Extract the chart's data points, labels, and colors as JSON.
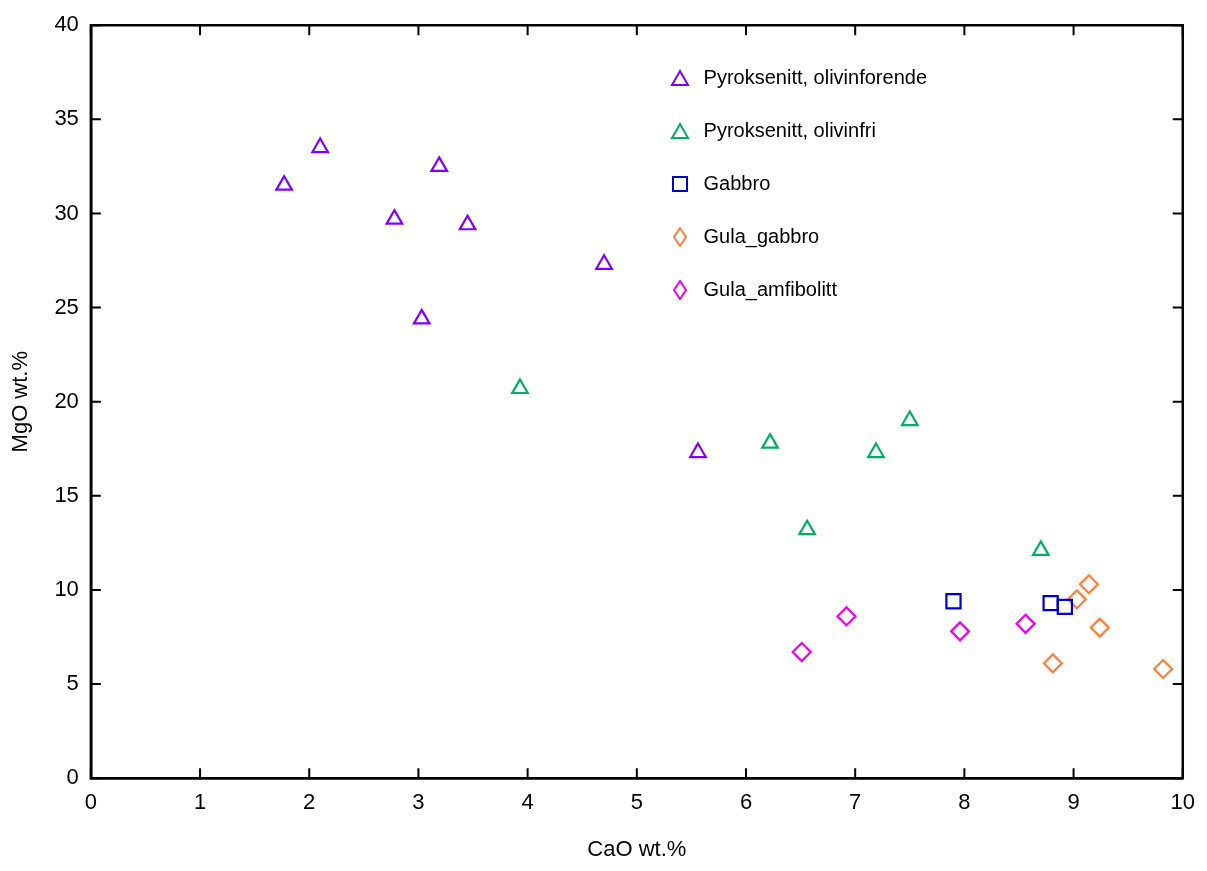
{
  "chart_data": {
    "type": "scatter",
    "xlabel": "CaO wt.%",
    "ylabel": "MgO wt.%",
    "xlim": [
      0,
      10
    ],
    "ylim": [
      0,
      40
    ],
    "xticks": [
      0,
      1,
      2,
      3,
      4,
      5,
      6,
      7,
      8,
      9,
      10
    ],
    "yticks": [
      0,
      5,
      10,
      15,
      20,
      25,
      30,
      35,
      40
    ],
    "grid": false,
    "legend": "top right",
    "series": [
      {
        "name": "Pyroksenitt, olivinforende",
        "color": "#8000ff",
        "marker": "triangle",
        "x": [
          1.77,
          2.1,
          3.19,
          2.78,
          3.45,
          3.03,
          4.7,
          5.56
        ],
        "values": [
          31.5,
          33.5,
          32.5,
          29.7,
          29.4,
          24.4,
          27.3,
          17.3
        ]
      },
      {
        "name": "Pyroksenitt, olivinfri",
        "color": "#00b060",
        "marker": "triangle",
        "x": [
          3.93,
          6.22,
          7.19,
          7.5,
          6.56,
          8.7
        ],
        "values": [
          20.7,
          17.8,
          17.3,
          19.0,
          13.2,
          12.1
        ]
      },
      {
        "name": "Gabbro",
        "color": "#0000cc",
        "marker": "square",
        "x": [
          7.9,
          8.79,
          8.92
        ],
        "values": [
          9.4,
          9.3,
          9.1
        ]
      },
      {
        "name": "Gula_gabbro",
        "color": "#ff7f3f",
        "marker": "diamond",
        "x": [
          8.81,
          9.03,
          9.14,
          9.24,
          9.82
        ],
        "values": [
          6.1,
          9.5,
          10.3,
          8.0,
          5.8
        ]
      },
      {
        "name": "Gula_amfibolitt",
        "color": "#ee00ee",
        "marker": "diamond",
        "x": [
          6.51,
          6.92,
          7.96,
          8.56
        ],
        "values": [
          6.7,
          8.6,
          7.8,
          8.2
        ]
      }
    ]
  }
}
